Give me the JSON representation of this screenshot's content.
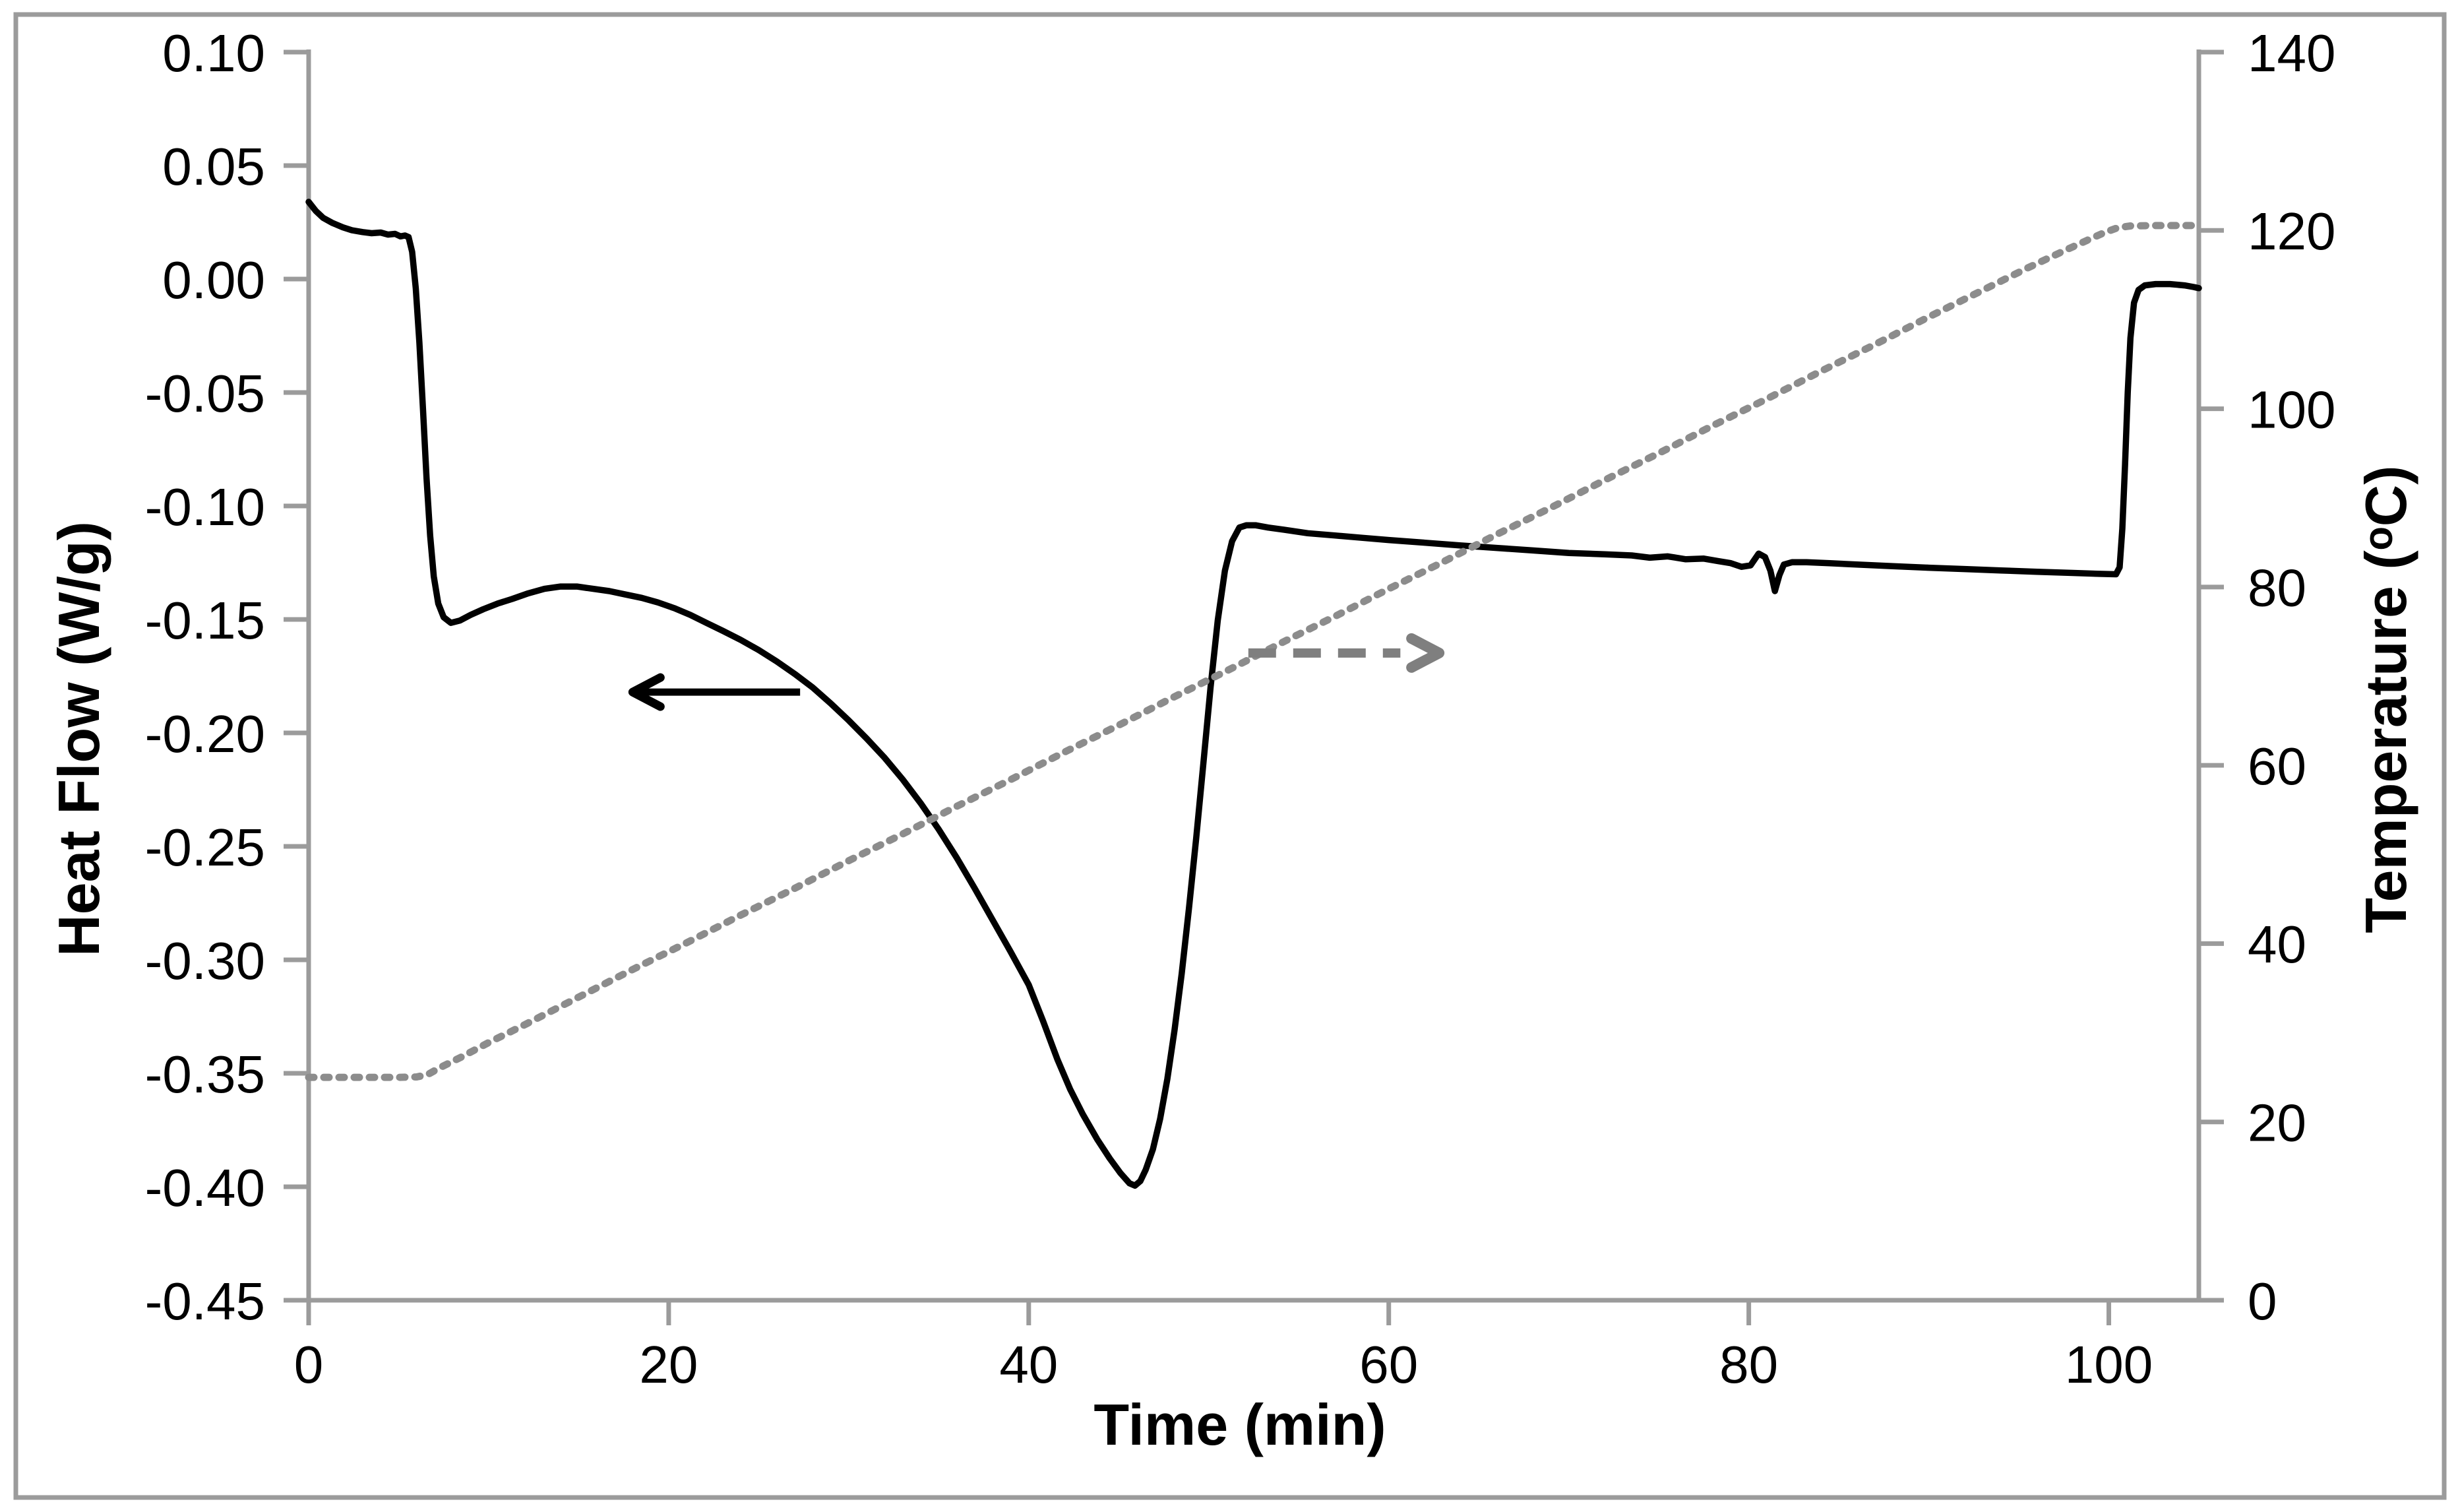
{
  "figure": {
    "background": "#ffffff",
    "border_color": "#9b9b9b",
    "axis_color": "#9b9b9b",
    "text_color": "#000000"
  },
  "chart_data": {
    "type": "line",
    "title": "",
    "xlabel": "Time (min)",
    "ylabel_left": "Heat Flow (W/g)",
    "ylabel_right": "Temperature (ᵒC)",
    "xlim": [
      0,
      105
    ],
    "ylim_left": [
      -0.45,
      0.1
    ],
    "ylim_right": [
      0,
      140
    ],
    "grid": false,
    "legend": "none",
    "x_ticks": [
      0,
      20,
      40,
      60,
      80,
      100
    ],
    "y_ticks_left": [
      "0.10",
      "0.05",
      "0.00",
      "-0.05",
      "-0.10",
      "-0.15",
      "-0.20",
      "-0.25",
      "-0.30",
      "-0.35",
      "-0.40",
      "-0.45"
    ],
    "y_ticks_left_values": [
      0.1,
      0.05,
      0.0,
      -0.05,
      -0.1,
      -0.15,
      -0.2,
      -0.25,
      -0.3,
      -0.35,
      -0.4,
      -0.45
    ],
    "y_ticks_right": [
      140,
      120,
      100,
      80,
      60,
      40,
      20,
      0
    ],
    "series": [
      {
        "name": "heat-flow",
        "axis": "left",
        "color": "#000000",
        "style": "solid",
        "stroke_width": 9.5,
        "points": [
          [
            0,
            0.034
          ],
          [
            0.4,
            0.03
          ],
          [
            0.8,
            0.027
          ],
          [
            1.3,
            0.0248
          ],
          [
            1.9,
            0.0228
          ],
          [
            2.4,
            0.0215
          ],
          [
            3.0,
            0.0207
          ],
          [
            3.5,
            0.0202
          ],
          [
            4.0,
            0.0205
          ],
          [
            4.4,
            0.0196
          ],
          [
            4.8,
            0.0199
          ],
          [
            5.1,
            0.0188
          ],
          [
            5.35,
            0.0192
          ],
          [
            5.55,
            0.0185
          ],
          [
            5.75,
            0.012
          ],
          [
            5.95,
            -0.004
          ],
          [
            6.15,
            -0.028
          ],
          [
            6.35,
            -0.057
          ],
          [
            6.55,
            -0.088
          ],
          [
            6.75,
            -0.113
          ],
          [
            6.95,
            -0.131
          ],
          [
            7.2,
            -0.143
          ],
          [
            7.5,
            -0.149
          ],
          [
            7.9,
            -0.1515
          ],
          [
            8.4,
            -0.1505
          ],
          [
            9.0,
            -0.148
          ],
          [
            9.7,
            -0.1455
          ],
          [
            10.5,
            -0.143
          ],
          [
            11.3,
            -0.141
          ],
          [
            12.2,
            -0.1385
          ],
          [
            13.1,
            -0.1365
          ],
          [
            14.0,
            -0.1355
          ],
          [
            14.9,
            -0.1355
          ],
          [
            15.8,
            -0.1365
          ],
          [
            16.7,
            -0.1375
          ],
          [
            17.6,
            -0.139
          ],
          [
            18.5,
            -0.1405
          ],
          [
            19.4,
            -0.1425
          ],
          [
            20.3,
            -0.145
          ],
          [
            21.2,
            -0.148
          ],
          [
            22.1,
            -0.1515
          ],
          [
            23.0,
            -0.155
          ],
          [
            24.0,
            -0.159
          ],
          [
            25.0,
            -0.1635
          ],
          [
            26.0,
            -0.1685
          ],
          [
            27.0,
            -0.174
          ],
          [
            28.0,
            -0.18
          ],
          [
            29.0,
            -0.187
          ],
          [
            30.0,
            -0.1945
          ],
          [
            31.0,
            -0.2025
          ],
          [
            32.0,
            -0.211
          ],
          [
            33.0,
            -0.2205
          ],
          [
            34.0,
            -0.231
          ],
          [
            35.0,
            -0.2425
          ],
          [
            36.0,
            -0.255
          ],
          [
            37.0,
            -0.2685
          ],
          [
            38.0,
            -0.2825
          ],
          [
            39.0,
            -0.2965
          ],
          [
            40.0,
            -0.311
          ],
          [
            40.8,
            -0.327
          ],
          [
            41.6,
            -0.344
          ],
          [
            42.3,
            -0.357
          ],
          [
            43.0,
            -0.368
          ],
          [
            43.8,
            -0.379
          ],
          [
            44.5,
            -0.3875
          ],
          [
            45.1,
            -0.394
          ],
          [
            45.6,
            -0.3985
          ],
          [
            45.9,
            -0.3995
          ],
          [
            46.2,
            -0.3975
          ],
          [
            46.5,
            -0.3925
          ],
          [
            46.9,
            -0.3835
          ],
          [
            47.3,
            -0.37
          ],
          [
            47.7,
            -0.3525
          ],
          [
            48.1,
            -0.331
          ],
          [
            48.5,
            -0.306
          ],
          [
            48.9,
            -0.2775
          ],
          [
            49.3,
            -0.2465
          ],
          [
            49.7,
            -0.2135
          ],
          [
            50.1,
            -0.18
          ],
          [
            50.5,
            -0.1505
          ],
          [
            50.9,
            -0.1285
          ],
          [
            51.3,
            -0.1155
          ],
          [
            51.7,
            -0.1095
          ],
          [
            52.1,
            -0.1085
          ],
          [
            52.6,
            -0.1085
          ],
          [
            53.3,
            -0.1095
          ],
          [
            54.2,
            -0.1105
          ],
          [
            55.5,
            -0.112
          ],
          [
            57,
            -0.113
          ],
          [
            58.5,
            -0.114
          ],
          [
            60,
            -0.115
          ],
          [
            62,
            -0.1162
          ],
          [
            64,
            -0.1174
          ],
          [
            66,
            -0.1185
          ],
          [
            68,
            -0.1196
          ],
          [
            70,
            -0.1207
          ],
          [
            72,
            -0.1213
          ],
          [
            73.5,
            -0.1218
          ],
          [
            74.5,
            -0.1228
          ],
          [
            75.5,
            -0.1222
          ],
          [
            76.5,
            -0.1235
          ],
          [
            77.5,
            -0.1232
          ],
          [
            78.3,
            -0.1243
          ],
          [
            79.0,
            -0.1252
          ],
          [
            79.6,
            -0.1268
          ],
          [
            80.1,
            -0.1262
          ],
          [
            80.55,
            -0.121
          ],
          [
            80.9,
            -0.1225
          ],
          [
            81.2,
            -0.1285
          ],
          [
            81.45,
            -0.1375
          ],
          [
            81.7,
            -0.1305
          ],
          [
            81.95,
            -0.1258
          ],
          [
            82.4,
            -0.1248
          ],
          [
            83.2,
            -0.1248
          ],
          [
            84.5,
            -0.1252
          ],
          [
            86,
            -0.1258
          ],
          [
            88,
            -0.1265
          ],
          [
            90,
            -0.1272
          ],
          [
            92,
            -0.1278
          ],
          [
            94,
            -0.1284
          ],
          [
            96,
            -0.129
          ],
          [
            98,
            -0.1295
          ],
          [
            99.5,
            -0.1299
          ],
          [
            100.4,
            -0.1301
          ],
          [
            100.6,
            -0.127
          ],
          [
            100.75,
            -0.11
          ],
          [
            100.9,
            -0.082
          ],
          [
            101.05,
            -0.05
          ],
          [
            101.2,
            -0.026
          ],
          [
            101.4,
            -0.0105
          ],
          [
            101.65,
            -0.0048
          ],
          [
            102.0,
            -0.0028
          ],
          [
            102.6,
            -0.0022
          ],
          [
            103.4,
            -0.0022
          ],
          [
            104.2,
            -0.0028
          ],
          [
            104.7,
            -0.0035
          ],
          [
            105,
            -0.004
          ]
        ]
      },
      {
        "name": "temperature",
        "axis": "right",
        "color": "#8c8c8c",
        "style": "dashed",
        "stroke_width": 11,
        "dash": "8 15",
        "points": [
          [
            0,
            25
          ],
          [
            1,
            25
          ],
          [
            2,
            25
          ],
          [
            3,
            25
          ],
          [
            4,
            25
          ],
          [
            5,
            25
          ],
          [
            6,
            25.05
          ],
          [
            6.6,
            25.3
          ],
          [
            7.3,
            26.1
          ],
          [
            8.5,
            27.3
          ],
          [
            10,
            28.9
          ],
          [
            12,
            30.9
          ],
          [
            15,
            34.0
          ],
          [
            18,
            37.1
          ],
          [
            21,
            40.1
          ],
          [
            24,
            43.2
          ],
          [
            27,
            46.2
          ],
          [
            30,
            49.3
          ],
          [
            33,
            52.3
          ],
          [
            36,
            55.4
          ],
          [
            39,
            58.4
          ],
          [
            42,
            61.5
          ],
          [
            45,
            64.5
          ],
          [
            48,
            67.6
          ],
          [
            51,
            70.6
          ],
          [
            54,
            73.7
          ],
          [
            57,
            76.7
          ],
          [
            60,
            79.8
          ],
          [
            63,
            82.8
          ],
          [
            66,
            85.9
          ],
          [
            69,
            88.9
          ],
          [
            72,
            92.0
          ],
          [
            75,
            95.0
          ],
          [
            78,
            98.1
          ],
          [
            81,
            101.1
          ],
          [
            84,
            104.2
          ],
          [
            87,
            107.2
          ],
          [
            90,
            110.3
          ],
          [
            93,
            113.3
          ],
          [
            95.5,
            115.8
          ],
          [
            97.5,
            117.7
          ],
          [
            98.8,
            118.9
          ],
          [
            99.8,
            119.8
          ],
          [
            100.5,
            120.3
          ],
          [
            101.2,
            120.5
          ],
          [
            102.5,
            120.55
          ],
          [
            104,
            120.55
          ],
          [
            105,
            120.55
          ]
        ]
      }
    ],
    "annotations": [
      {
        "id": "heat-flow-arrow",
        "meaning": "indicates heat-flow curve is read on the left axis",
        "axis": "left",
        "y_value": -0.182,
        "t_tail": 27.3,
        "t_tip": 18.0,
        "direction": "left",
        "color": "#000000",
        "dashed": false,
        "width": 11
      },
      {
        "id": "temperature-arrow",
        "meaning": "indicates temperature curve is read on the right axis",
        "axis": "right",
        "y_value": 72.6,
        "t_tail": 52.2,
        "t_tip": 62.8,
        "direction": "right",
        "color": "#7f7f7f",
        "dashed": true,
        "dash": "42 26",
        "width": 14
      }
    ]
  }
}
